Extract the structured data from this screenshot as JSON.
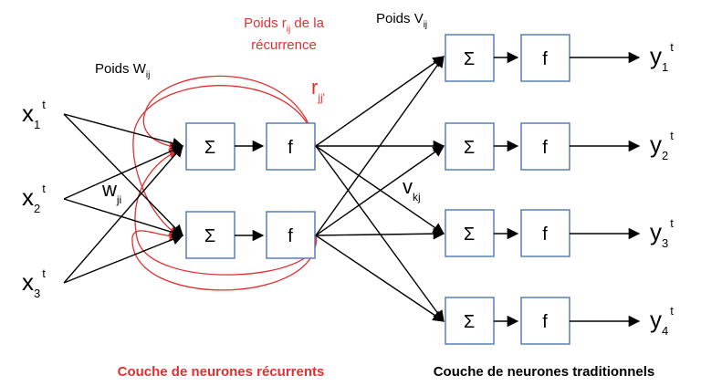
{
  "colors": {
    "recurrence": "#e03030",
    "box_stroke": "#4a78b4",
    "edges": "#000000"
  },
  "labels": {
    "weights_w": {
      "text": "Poids W",
      "sub": "ij"
    },
    "weights_r": {
      "line1_pre": "Poids r",
      "line1_sub": "ij",
      "line1_post": " de la",
      "line2": "récurrence"
    },
    "weights_v": {
      "text": "Poids V",
      "sub": "ij"
    },
    "w_ji": {
      "main": "w",
      "sub": "ji"
    },
    "r_jj": {
      "main": "r",
      "sub": "jj'"
    },
    "v_kj": {
      "main": "v",
      "sub": "kj"
    }
  },
  "inputs": [
    {
      "main": "x",
      "sub": "1",
      "sup": "t"
    },
    {
      "main": "x",
      "sub": "2",
      "sup": "t"
    },
    {
      "main": "x",
      "sub": "3",
      "sup": "t"
    }
  ],
  "outputs": [
    {
      "main": "y",
      "sub": "1",
      "sup": "t"
    },
    {
      "main": "y",
      "sub": "2",
      "sup": "t"
    },
    {
      "main": "y",
      "sub": "3",
      "sup": "t"
    },
    {
      "main": "y",
      "sub": "4",
      "sup": "t"
    }
  ],
  "neuron": {
    "sum_symbol": "Σ",
    "activation": "f"
  },
  "captions": {
    "recurrent_layer": "Couche de neurones récurrents",
    "traditional_layer": "Couche de neurones traditionnels"
  }
}
